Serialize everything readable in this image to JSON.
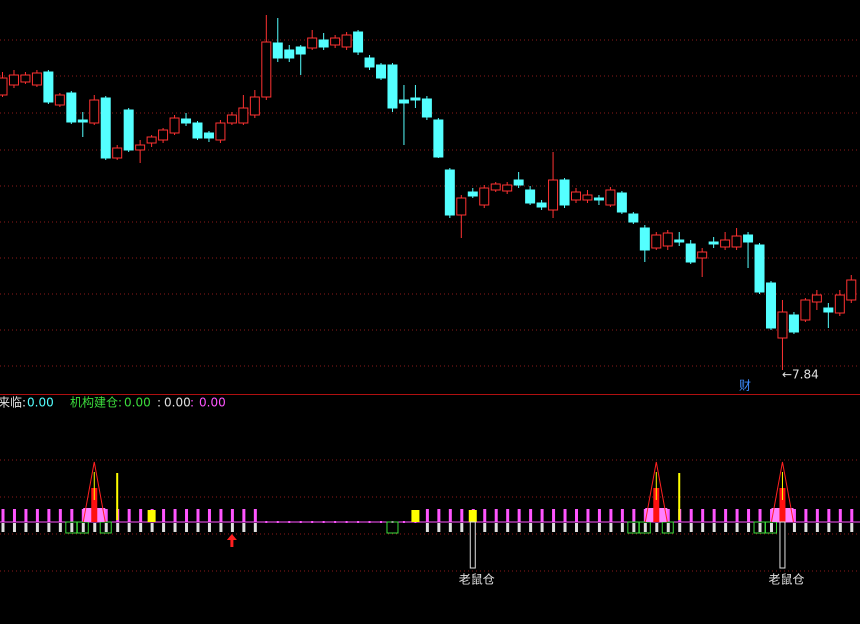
{
  "chart_data": {
    "type": "candlestick",
    "ohlc": [
      [
        10.59,
        10.82,
        10.57,
        10.76
      ],
      [
        10.69,
        10.84,
        10.66,
        10.79
      ],
      [
        10.72,
        10.82,
        10.7,
        10.79
      ],
      [
        10.69,
        10.84,
        10.67,
        10.81
      ],
      [
        10.82,
        10.84,
        10.5,
        10.52
      ],
      [
        10.49,
        10.61,
        10.47,
        10.59
      ],
      [
        10.61,
        10.63,
        10.3,
        10.32
      ],
      [
        10.34,
        10.42,
        10.17,
        10.32
      ],
      [
        10.31,
        10.59,
        10.29,
        10.54
      ],
      [
        10.56,
        10.58,
        9.94,
        9.96
      ],
      [
        9.96,
        10.09,
        9.94,
        10.06
      ],
      [
        10.44,
        10.46,
        10.02,
        10.04
      ],
      [
        10.04,
        10.14,
        9.91,
        10.09
      ],
      [
        10.11,
        10.19,
        10.07,
        10.17
      ],
      [
        10.14,
        10.26,
        10.11,
        10.24
      ],
      [
        10.21,
        10.39,
        10.19,
        10.36
      ],
      [
        10.35,
        10.41,
        10.28,
        10.31
      ],
      [
        10.31,
        10.33,
        10.14,
        10.16
      ],
      [
        10.21,
        10.23,
        10.12,
        10.16
      ],
      [
        10.14,
        10.34,
        10.11,
        10.31
      ],
      [
        10.31,
        10.42,
        10.29,
        10.39
      ],
      [
        10.31,
        10.59,
        10.29,
        10.46
      ],
      [
        10.39,
        10.64,
        10.36,
        10.57
      ],
      [
        10.57,
        11.39,
        10.54,
        11.12
      ],
      [
        11.11,
        11.36,
        10.92,
        10.96
      ],
      [
        11.04,
        11.09,
        10.92,
        10.96
      ],
      [
        11.07,
        11.09,
        10.79,
        11.0
      ],
      [
        11.06,
        11.24,
        11.04,
        11.16
      ],
      [
        11.14,
        11.21,
        11.04,
        11.07
      ],
      [
        11.09,
        11.19,
        11.06,
        11.16
      ],
      [
        11.07,
        11.22,
        11.04,
        11.19
      ],
      [
        11.22,
        11.24,
        10.99,
        11.02
      ],
      [
        10.96,
        10.99,
        10.84,
        10.87
      ],
      [
        10.89,
        10.91,
        10.74,
        10.76
      ],
      [
        10.89,
        10.91,
        10.42,
        10.46
      ],
      [
        10.54,
        10.69,
        10.09,
        10.51
      ],
      [
        10.56,
        10.69,
        10.46,
        10.54
      ],
      [
        10.55,
        10.58,
        10.34,
        10.37
      ],
      [
        10.34,
        10.36,
        9.96,
        9.97
      ],
      [
        9.84,
        9.86,
        9.36,
        9.39
      ],
      [
        9.39,
        9.59,
        9.16,
        9.56
      ],
      [
        9.62,
        9.66,
        9.56,
        9.58
      ],
      [
        9.49,
        9.69,
        9.46,
        9.66
      ],
      [
        9.64,
        9.72,
        9.62,
        9.7
      ],
      [
        9.63,
        9.72,
        9.6,
        9.69
      ],
      [
        9.74,
        9.82,
        9.66,
        9.69
      ],
      [
        9.64,
        9.68,
        9.49,
        9.51
      ],
      [
        9.51,
        9.54,
        9.44,
        9.47
      ],
      [
        9.44,
        10.02,
        9.36,
        9.74
      ],
      [
        9.74,
        9.76,
        9.46,
        9.49
      ],
      [
        9.54,
        9.66,
        9.51,
        9.62
      ],
      [
        9.54,
        9.64,
        9.51,
        9.59
      ],
      [
        9.56,
        9.59,
        9.49,
        9.54
      ],
      [
        9.49,
        9.67,
        9.47,
        9.64
      ],
      [
        9.61,
        9.63,
        9.4,
        9.42
      ],
      [
        9.4,
        9.42,
        9.3,
        9.32
      ],
      [
        9.26,
        9.29,
        8.92,
        9.04
      ],
      [
        9.06,
        9.22,
        9.04,
        9.19
      ],
      [
        9.08,
        9.24,
        9.04,
        9.21
      ],
      [
        9.14,
        9.22,
        9.08,
        9.12
      ],
      [
        9.1,
        9.14,
        8.9,
        8.92
      ],
      [
        8.96,
        9.06,
        8.77,
        9.02
      ],
      [
        9.12,
        9.17,
        9.06,
        9.1
      ],
      [
        9.07,
        9.22,
        9.04,
        9.14
      ],
      [
        9.07,
        9.26,
        9.04,
        9.18
      ],
      [
        9.19,
        9.22,
        8.86,
        9.12
      ],
      [
        9.09,
        9.11,
        8.6,
        8.62
      ],
      [
        8.71,
        8.73,
        8.24,
        8.26
      ],
      [
        8.16,
        8.54,
        7.84,
        8.42
      ],
      [
        8.39,
        8.42,
        8.2,
        8.22
      ],
      [
        8.34,
        8.56,
        8.32,
        8.54
      ],
      [
        8.52,
        8.64,
        8.44,
        8.59
      ],
      [
        8.46,
        8.51,
        8.26,
        8.42
      ],
      [
        8.41,
        8.64,
        8.38,
        8.59
      ],
      [
        8.54,
        8.79,
        8.51,
        8.74
      ]
    ],
    "ylim": [
      7.6,
      11.54
    ],
    "up_color": "#ff3232",
    "down_color": "#54ffff",
    "low_label": "←7.84",
    "marker_text": "财",
    "legend": [
      {
        "label": "来临:",
        "value": "0.00",
        "color": "#e0e0e0",
        "value_color": "#54ffff"
      },
      {
        "label": "机构建仓:",
        "value": "0.00",
        "color": "#3cdc3c",
        "value_color": "#3cdc3c"
      },
      {
        "label": ":",
        "value": "0.00",
        "color": "#e0e0e0",
        "value_color": "#e0e0e0"
      },
      {
        "label": ":",
        "value": "0.00",
        "color": "#ff55ff",
        "value_color": "#ff55ff"
      }
    ],
    "sub_chart": {
      "peak_signal": [
        8,
        57,
        68
      ],
      "yellow_line": [
        10,
        59
      ],
      "yellow_block": [
        13,
        36,
        41,
        57
      ],
      "green_box": [
        6,
        7,
        9,
        34,
        55,
        56,
        58,
        66,
        67
      ],
      "buy_arrow": [
        20
      ],
      "rat_hold": [
        41,
        68
      ],
      "rat_label": "老鼠仓",
      "quiet_range": [
        23,
        36
      ]
    }
  }
}
